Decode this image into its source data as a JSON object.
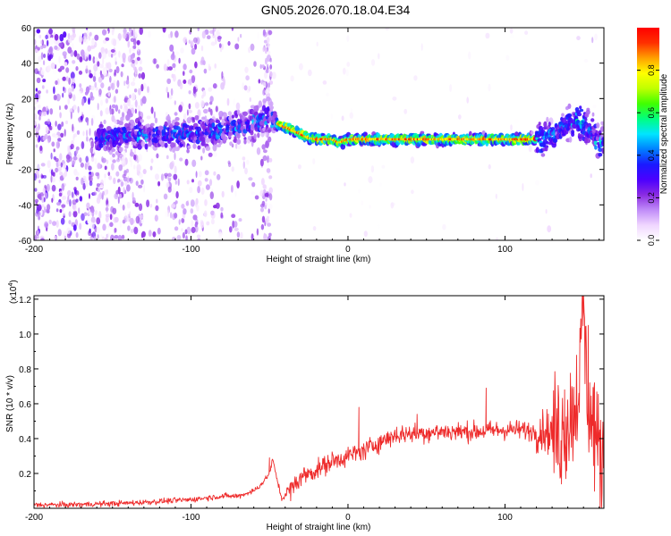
{
  "title": "GN05.2026.070.18.04.E34",
  "chart_data": [
    {
      "type": "heatmap",
      "name": "spectrogram",
      "xlabel": "Height of straight line (km)",
      "ylabel": "Frequency (Hz)",
      "xlim": [
        -200,
        163
      ],
      "ylim": [
        -60,
        60
      ],
      "xticks": [
        -200,
        -100,
        0,
        100
      ],
      "yticks": [
        60,
        40,
        20,
        0,
        -20,
        -40,
        -60
      ],
      "colorbar": {
        "label": "Normalized spectral amplitude",
        "range": [
          0,
          1
        ],
        "ticks": [
          0.0,
          0.2,
          0.4,
          0.6,
          0.8
        ],
        "colors": [
          "#ffffff",
          "#f0d6ff",
          "#c08cf8",
          "#8a2be2",
          "#4b00ff",
          "#1a1aff",
          "#0080ff",
          "#00e5ff",
          "#00ff80",
          "#40ff00",
          "#c0ff00",
          "#ffff00",
          "#ffa000",
          "#ff3000",
          "#ff0000"
        ]
      },
      "ridge": {
        "x": [
          -155,
          -140,
          -120,
          -100,
          -80,
          -65,
          -55,
          -50,
          -45,
          -40,
          -35,
          -30,
          -25,
          -20,
          -10,
          -5,
          0,
          20,
          60,
          100,
          110,
          120,
          125,
          130,
          135,
          140,
          145,
          150,
          155,
          160
        ],
        "freq": [
          -2,
          0,
          0,
          0,
          2,
          5,
          8,
          10,
          6,
          4,
          2,
          0,
          -2,
          -3,
          -3,
          -5,
          -3,
          -3,
          -3,
          -3,
          -3,
          -3,
          -2,
          0,
          2,
          5,
          8,
          6,
          0,
          -5
        ],
        "peak_amplitude": 0.98
      }
    },
    {
      "type": "line",
      "name": "snr",
      "xlabel": "Height of straight line (km)",
      "ylabel": "SNR (10 * v/v)",
      "scale_note": "(x10^4)",
      "scale_prefix": "(x10",
      "scale_exponent": "4",
      "scale_suffix": ")",
      "xlim": [
        -200,
        163
      ],
      "ylim": [
        0,
        1.22
      ],
      "xticks": [
        -200,
        -100,
        0,
        100
      ],
      "yticks": [
        0.2,
        0.4,
        0.6,
        0.8,
        1.0,
        1.2
      ],
      "color": "#ee2a2a",
      "series": [
        {
          "name": "SNR",
          "x": [
            -200,
            -180,
            -160,
            -140,
            -120,
            -100,
            -90,
            -80,
            -70,
            -60,
            -55,
            -50,
            -48,
            -46,
            -44,
            -42,
            -40,
            -35,
            -30,
            -20,
            -10,
            0,
            10,
            20,
            30,
            40,
            60,
            80,
            100,
            110,
            120,
            125,
            130,
            135,
            140,
            145,
            148,
            150,
            152,
            155,
            158,
            160,
            163
          ],
          "y": [
            0.02,
            0.02,
            0.025,
            0.03,
            0.04,
            0.05,
            0.06,
            0.07,
            0.07,
            0.1,
            0.14,
            0.2,
            0.28,
            0.2,
            0.12,
            0.05,
            0.08,
            0.12,
            0.18,
            0.22,
            0.27,
            0.3,
            0.33,
            0.38,
            0.42,
            0.43,
            0.44,
            0.44,
            0.45,
            0.45,
            0.44,
            0.45,
            0.43,
            0.42,
            0.5,
            0.6,
            0.8,
            1.2,
            0.7,
            0.5,
            0.4,
            0.3,
            0.3
          ],
          "spikes": [
            {
              "x": -50,
              "y": 0.29
            },
            {
              "x": 7,
              "y": 0.58
            },
            {
              "x": 44,
              "y": 0.54
            },
            {
              "x": 88,
              "y": 0.69
            },
            {
              "x": 138,
              "y": 0.68
            },
            {
              "x": 150,
              "y": 1.22
            },
            {
              "x": 153,
              "y": 1.05
            },
            {
              "x": 157,
              "y": 0.72
            }
          ]
        }
      ]
    }
  ]
}
